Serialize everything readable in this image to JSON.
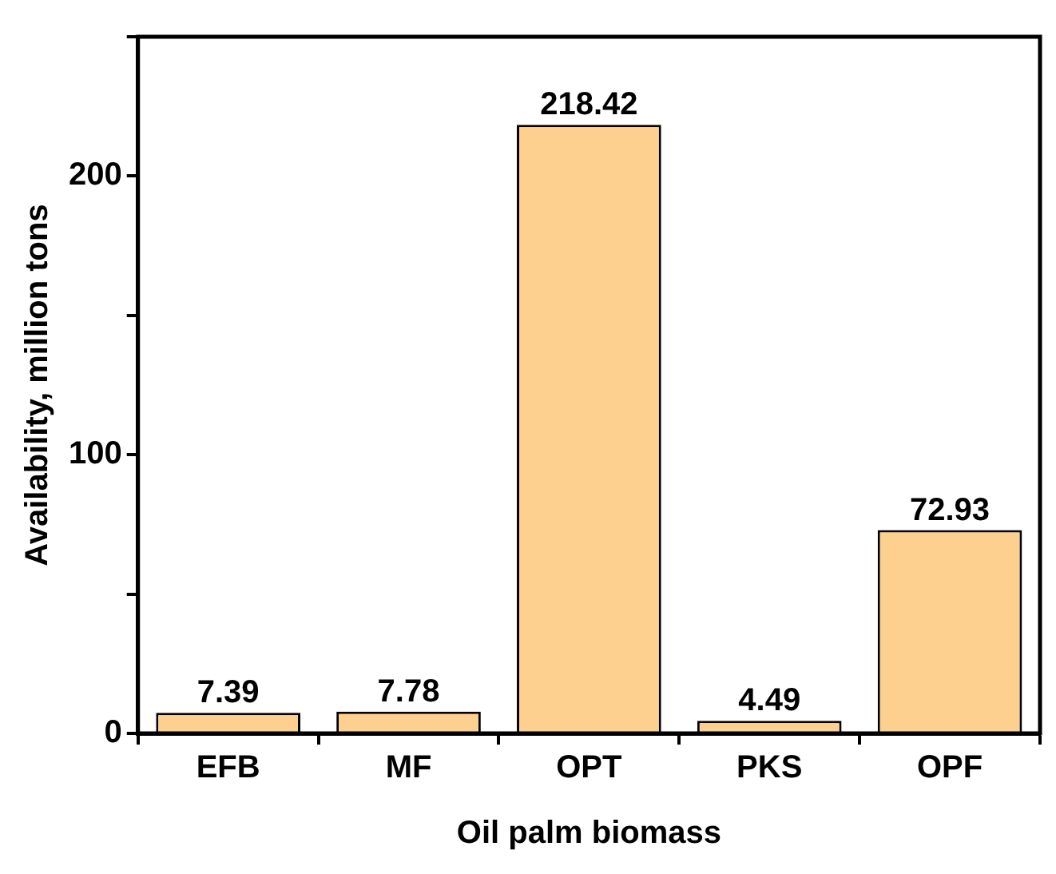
{
  "chart_data": {
    "type": "bar",
    "xlabel": "Oil palm biomass",
    "ylabel": "Availability, million tons",
    "categories": [
      "EFB",
      "MF",
      "OPT",
      "PKS",
      "OPF"
    ],
    "values": [
      7.39,
      7.78,
      218.42,
      4.49,
      72.93
    ],
    "color": "#fdd08f",
    "ylim": [
      0,
      250
    ],
    "yticks": [
      0,
      {
        "value": 50,
        "label": null
      },
      100,
      {
        "value": 150,
        "label": null
      },
      200,
      {
        "value": 250,
        "label": null
      }
    ],
    "data_labels": true,
    "grid": false,
    "legend": false
  }
}
